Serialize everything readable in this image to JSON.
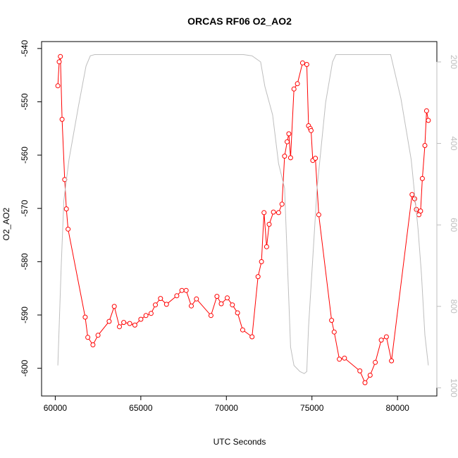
{
  "chart_data": {
    "type": "line",
    "title": "ORCAS RF06 O2_AO2",
    "xlabel": "UTC Seconds",
    "ylabel": "O2_AO2",
    "xlim": [
      59200,
      82300
    ],
    "ylim": [
      -605.2,
      -538.7
    ],
    "x_ticks": [
      60000,
      65000,
      70000,
      75000,
      80000
    ],
    "x_tick_labels": [
      "60000",
      "65000",
      "70000",
      "75000",
      "80000"
    ],
    "y_ticks": [
      -600,
      -590,
      -580,
      -570,
      -560,
      -550,
      -540
    ],
    "y_tick_labels": [
      "-600",
      "-590",
      "-580",
      "-570",
      "-560",
      "-550",
      "-540"
    ],
    "right_axis": {
      "ylim": [
        1020,
        150
      ],
      "ticks": [
        200,
        400,
        600,
        800,
        1000
      ],
      "tick_labels": [
        "200",
        "400",
        "600",
        "800",
        "1000"
      ],
      "color": "#bebebe"
    },
    "grid": false,
    "series": [
      {
        "color": "#ff0000",
        "marker": "open-circle",
        "axis": "left",
        "points": [
          [
            60150,
            -547.0
          ],
          [
            60230,
            -542.5
          ],
          [
            60300,
            -541.5
          ],
          [
            60400,
            -553.3
          ],
          [
            60550,
            -564.6
          ],
          [
            60650,
            -570.1
          ],
          [
            60750,
            -573.9
          ],
          [
            61750,
            -590.4
          ],
          [
            61900,
            -594.2
          ],
          [
            62200,
            -595.6
          ],
          [
            62500,
            -593.8
          ],
          [
            63150,
            -591.2
          ],
          [
            63450,
            -588.4
          ],
          [
            63750,
            -592.2
          ],
          [
            64000,
            -591.4
          ],
          [
            64350,
            -591.6
          ],
          [
            64650,
            -591.9
          ],
          [
            65000,
            -590.8
          ],
          [
            65300,
            -590.1
          ],
          [
            65600,
            -589.7
          ],
          [
            65850,
            -588.1
          ],
          [
            66150,
            -586.9
          ],
          [
            66500,
            -588.0
          ],
          [
            67100,
            -586.4
          ],
          [
            67400,
            -585.4
          ],
          [
            67650,
            -585.4
          ],
          [
            67950,
            -588.3
          ],
          [
            68250,
            -587.0
          ],
          [
            69100,
            -590.1
          ],
          [
            69450,
            -586.5
          ],
          [
            69700,
            -587.9
          ],
          [
            70050,
            -586.8
          ],
          [
            70350,
            -588.1
          ],
          [
            70650,
            -589.6
          ],
          [
            70950,
            -592.8
          ],
          [
            71500,
            -594.1
          ],
          [
            71850,
            -582.8
          ],
          [
            72050,
            -580.0
          ],
          [
            72200,
            -570.8
          ],
          [
            72350,
            -577.2
          ],
          [
            72500,
            -573.0
          ],
          [
            72750,
            -570.7
          ],
          [
            73050,
            -570.8
          ],
          [
            73250,
            -569.2
          ],
          [
            73400,
            -560.2
          ],
          [
            73550,
            -557.5
          ],
          [
            73650,
            -556.0
          ],
          [
            73750,
            -560.5
          ],
          [
            73950,
            -547.6
          ],
          [
            74150,
            -546.6
          ],
          [
            74450,
            -542.7
          ],
          [
            74700,
            -543.0
          ],
          [
            74800,
            -554.5
          ],
          [
            74900,
            -555.0
          ],
          [
            74950,
            -555.4
          ],
          [
            75050,
            -561.0
          ],
          [
            75200,
            -560.6
          ],
          [
            75400,
            -571.2
          ],
          [
            76150,
            -591.0
          ],
          [
            76300,
            -593.2
          ],
          [
            76600,
            -598.3
          ],
          [
            76900,
            -598.1
          ],
          [
            77800,
            -600.5
          ],
          [
            78100,
            -602.7
          ],
          [
            78400,
            -601.3
          ],
          [
            78700,
            -598.9
          ],
          [
            79050,
            -594.7
          ],
          [
            79350,
            -594.1
          ],
          [
            79650,
            -598.6
          ],
          [
            80850,
            -567.4
          ],
          [
            81000,
            -568.2
          ],
          [
            81100,
            -570.2
          ],
          [
            81250,
            -571.2
          ],
          [
            81350,
            -570.5
          ],
          [
            81450,
            -564.4
          ],
          [
            81600,
            -558.2
          ],
          [
            81700,
            -551.7
          ],
          [
            81800,
            -553.5
          ]
        ]
      },
      {
        "color": "#bebebe",
        "marker": "none",
        "axis": "right",
        "points": [
          [
            60150,
            945
          ],
          [
            60350,
            700
          ],
          [
            60500,
            540
          ],
          [
            60800,
            440
          ],
          [
            61350,
            310
          ],
          [
            61800,
            210
          ],
          [
            62050,
            185
          ],
          [
            62300,
            182
          ],
          [
            65000,
            182
          ],
          [
            68000,
            182
          ],
          [
            71000,
            182
          ],
          [
            71500,
            185
          ],
          [
            72000,
            200
          ],
          [
            72250,
            260
          ],
          [
            72700,
            330
          ],
          [
            73050,
            450
          ],
          [
            73400,
            510
          ],
          [
            73750,
            900
          ],
          [
            73950,
            945
          ],
          [
            74300,
            960
          ],
          [
            74550,
            965
          ],
          [
            74700,
            960
          ],
          [
            74800,
            850
          ],
          [
            75300,
            510
          ],
          [
            75800,
            300
          ],
          [
            76200,
            200
          ],
          [
            76400,
            182
          ],
          [
            78000,
            182
          ],
          [
            79600,
            182
          ],
          [
            80200,
            290
          ],
          [
            80800,
            440
          ],
          [
            81200,
            610
          ],
          [
            81400,
            720
          ],
          [
            81600,
            870
          ],
          [
            81800,
            945
          ]
        ]
      }
    ]
  }
}
